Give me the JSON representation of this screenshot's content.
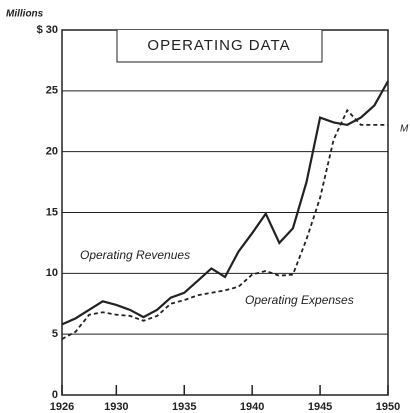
{
  "chart_data": {
    "type": "line",
    "title": "OPERATING DATA",
    "y_label": "Millions",
    "x": [
      1926,
      1927,
      1928,
      1929,
      1930,
      1931,
      1932,
      1933,
      1934,
      1935,
      1936,
      1937,
      1938,
      1939,
      1940,
      1941,
      1942,
      1943,
      1944,
      1945,
      1946,
      1947,
      1948,
      1949,
      1950
    ],
    "series": [
      {
        "name": "Operating Revenues",
        "color": "#222222",
        "dash": false,
        "values": [
          5.8,
          6.3,
          7.0,
          7.7,
          7.4,
          7.0,
          6.4,
          7.0,
          8.0,
          8.4,
          9.4,
          10.4,
          9.7,
          11.8,
          13.3,
          14.9,
          12.5,
          13.7,
          17.5,
          22.8,
          22.4,
          22.2,
          22.8,
          23.8,
          25.8
        ]
      },
      {
        "name": "Operating Expenses",
        "color": "#222222",
        "dash": true,
        "values": [
          4.6,
          5.2,
          6.6,
          6.8,
          6.6,
          6.5,
          6.1,
          6.5,
          7.5,
          7.8,
          8.2,
          8.4,
          8.6,
          8.9,
          9.9,
          10.2,
          9.8,
          9.9,
          12.8,
          16.2,
          21.0,
          23.4,
          22.2,
          22.2,
          22.2
        ]
      }
    ],
    "annotations": [
      "M"
    ],
    "xlim": [
      1926,
      1950
    ],
    "xticks": [
      1926,
      1930,
      1935,
      1940,
      1945,
      1950
    ],
    "ylim": [
      0,
      30
    ],
    "yticks": [
      0,
      5,
      10,
      15,
      20,
      {
        "value": 30,
        "label": "$ 30"
      },
      25
    ],
    "grid": true
  }
}
